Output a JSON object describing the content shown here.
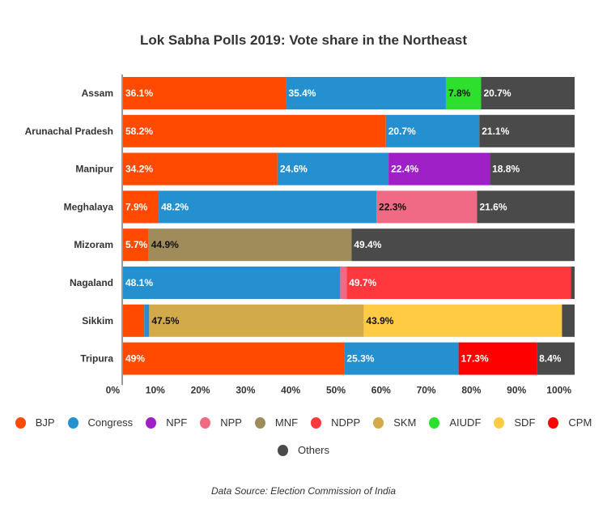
{
  "chart_data": {
    "type": "bar",
    "orientation": "horizontal",
    "stacked": true,
    "title": "Lok Sabha Polls 2019: Vote share in the Northeast",
    "source": "Data Source: Election Commission of India",
    "xlim": [
      0,
      100
    ],
    "xticks": [
      "0%",
      "10%",
      "20%",
      "30%",
      "40%",
      "50%",
      "60%",
      "70%",
      "80%",
      "90%",
      "100%"
    ],
    "grid": false,
    "legend_placement": "bottom",
    "parties": [
      {
        "name": "BJP",
        "color": "#ff4a00"
      },
      {
        "name": "Congress",
        "color": "#2490d0"
      },
      {
        "name": "NPF",
        "color": "#a020c8"
      },
      {
        "name": "NPP",
        "color": "#f06a85"
      },
      {
        "name": "MNF",
        "color": "#a08c5b"
      },
      {
        "name": "NDPP",
        "color": "#ff383d"
      },
      {
        "name": "SKM",
        "color": "#d3aa4a"
      },
      {
        "name": "AIUDF",
        "color": "#2ee02e"
      },
      {
        "name": "SDF",
        "color": "#ffcb45"
      },
      {
        "name": "CPM",
        "color": "#ff0000"
      },
      {
        "name": "Others",
        "color": "#4a4a4a"
      }
    ],
    "categories": [
      "Assam",
      "Arunachal Pradesh",
      "Manipur",
      "Meghalaya",
      "Mizoram",
      "Nagaland",
      "Sikkim",
      "Tripura"
    ],
    "rows": [
      {
        "state": "Assam",
        "segments": [
          {
            "party": "BJP",
            "value": 36.1,
            "label": "36.1%"
          },
          {
            "party": "Congress",
            "value": 35.4,
            "label": "35.4%"
          },
          {
            "party": "AIUDF",
            "value": 7.8,
            "label": "7.8%"
          },
          {
            "party": "Others",
            "value": 20.7,
            "label": "20.7%"
          }
        ]
      },
      {
        "state": "Arunachal Pradesh",
        "segments": [
          {
            "party": "BJP",
            "value": 58.2,
            "label": "58.2%"
          },
          {
            "party": "Congress",
            "value": 20.7,
            "label": "20.7%"
          },
          {
            "party": "Others",
            "value": 21.1,
            "label": "21.1%"
          }
        ]
      },
      {
        "state": "Manipur",
        "segments": [
          {
            "party": "BJP",
            "value": 34.2,
            "label": "34.2%"
          },
          {
            "party": "Congress",
            "value": 24.6,
            "label": "24.6%"
          },
          {
            "party": "NPF",
            "value": 22.4,
            "label": "22.4%"
          },
          {
            "party": "Others",
            "value": 18.8,
            "label": "18.8%"
          }
        ]
      },
      {
        "state": "Meghalaya",
        "segments": [
          {
            "party": "BJP",
            "value": 7.9,
            "label": "7.9%"
          },
          {
            "party": "Congress",
            "value": 48.2,
            "label": "48.2%"
          },
          {
            "party": "NPP",
            "value": 22.3,
            "label": "22.3%"
          },
          {
            "party": "Others",
            "value": 21.6,
            "label": "21.6%"
          }
        ]
      },
      {
        "state": "Mizoram",
        "segments": [
          {
            "party": "BJP",
            "value": 5.7,
            "label": "5.7%"
          },
          {
            "party": "MNF",
            "value": 44.9,
            "label": "44.9%"
          },
          {
            "party": "Others",
            "value": 49.4,
            "label": "49.4%"
          }
        ]
      },
      {
        "state": "Nagaland",
        "segments": [
          {
            "party": "Congress",
            "value": 48.1,
            "label": "48.1%"
          },
          {
            "party": "NPP",
            "value": 1.4,
            "label": ""
          },
          {
            "party": "NDPP",
            "value": 49.7,
            "label": "49.7%"
          },
          {
            "party": "Others",
            "value": 0.8,
            "label": ""
          }
        ]
      },
      {
        "state": "Sikkim",
        "segments": [
          {
            "party": "BJP",
            "value": 4.7,
            "label": ""
          },
          {
            "party": "Congress",
            "value": 1.1,
            "label": ""
          },
          {
            "party": "SKM",
            "value": 47.5,
            "label": "47.5%"
          },
          {
            "party": "SDF",
            "value": 43.9,
            "label": "43.9%"
          },
          {
            "party": "Others",
            "value": 2.8,
            "label": ""
          }
        ]
      },
      {
        "state": "Tripura",
        "segments": [
          {
            "party": "BJP",
            "value": 49,
            "label": "49%"
          },
          {
            "party": "Congress",
            "value": 25.3,
            "label": "25.3%"
          },
          {
            "party": "CPM",
            "value": 17.3,
            "label": "17.3%"
          },
          {
            "party": "Others",
            "value": 8.4,
            "label": "8.4%"
          }
        ]
      }
    ]
  }
}
